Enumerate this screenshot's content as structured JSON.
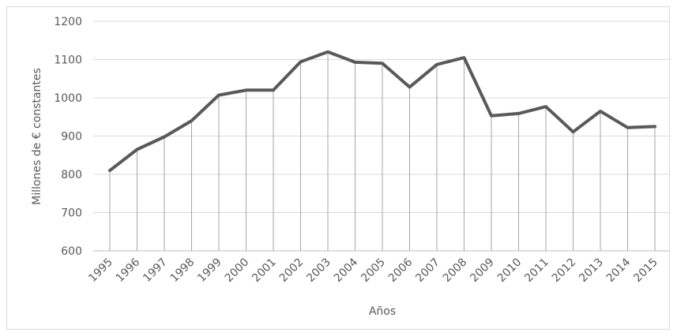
{
  "chart_data": {
    "type": "line",
    "title": "",
    "xlabel": "Años",
    "ylabel": "Millones de € constantes",
    "ylim": [
      600,
      1200
    ],
    "yticks": [
      600,
      700,
      800,
      900,
      1000,
      1100,
      1200
    ],
    "categories": [
      "1995",
      "1996",
      "1997",
      "1998",
      "1999",
      "2000",
      "2001",
      "2002",
      "2003",
      "2004",
      "2005",
      "2006",
      "2007",
      "2008",
      "2009",
      "2010",
      "2011",
      "2012",
      "2013",
      "2014",
      "2015"
    ],
    "series": [
      {
        "values": [
          810,
          865,
          898,
          940,
          1007,
          1020,
          1020,
          1094,
          1120,
          1093,
          1090,
          1028,
          1087,
          1105,
          953,
          959,
          977,
          911,
          965,
          922,
          925
        ],
        "color": "#595959"
      }
    ],
    "grid": true,
    "drop_lines": true,
    "legend": "none"
  }
}
